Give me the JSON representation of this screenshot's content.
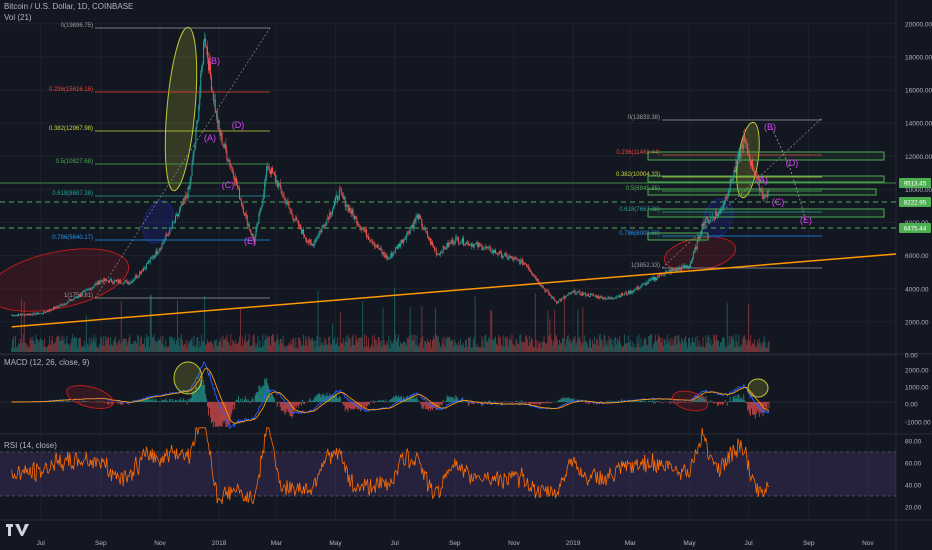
{
  "header": {
    "title": "Bitcoin / U.S. Dollar, 1D, COINBASE",
    "volume_label": "Vol (21)"
  },
  "macd_panel": {
    "label": "MACD (12, 26, close, 9)"
  },
  "rsi_panel": {
    "label": "RSI (14, close)"
  },
  "colors": {
    "background": "#131722",
    "candle_up": "#26a69a",
    "candle_down": "#ef5350",
    "trendline": "#ff9800",
    "fib_green": "#4caf50",
    "wave_label": "#e040fb",
    "rsi_line": "#ff6d00",
    "rsi_band": "#7e57c2",
    "macd_line": "#2962ff",
    "signal_line": "#ff9800"
  },
  "x_axis": {
    "labels": [
      "Jul",
      "Sep",
      "Nov",
      "2018",
      "Mar",
      "May",
      "Jul",
      "Sep",
      "Nov",
      "2019",
      "Mar",
      "May",
      "Jul",
      "Sep",
      "Nov"
    ]
  },
  "price_axis": {
    "ticks": [
      "20000.00",
      "18000.00",
      "16000.00",
      "14000.00",
      "12000.00",
      "10000.00",
      "8000.00",
      "6000.00",
      "4000.00",
      "2000.00",
      "0.00"
    ],
    "price_tags": [
      "9513.45",
      "8222.95",
      "6475.44"
    ]
  },
  "macd_axis": {
    "ticks": [
      "2000.00",
      "1000.00",
      "0.00",
      "-1000.00"
    ]
  },
  "rsi_axis": {
    "ticks": [
      "80.00",
      "60.00",
      "40.00",
      "20.00"
    ]
  },
  "fib_left": {
    "labels": [
      "0(19896.75)",
      "0.236(15616.15)",
      "0.382(12967.98)",
      "0.5(10827.68)",
      "0.618(8687.38)",
      "0.786(5640.17)",
      "1(1758.81)"
    ]
  },
  "fib_right": {
    "labels": [
      "0(13839.38)",
      "0.236(11468.44)",
      "0.382(10004.33)",
      "0.5(8845.85)",
      "0.618(7667.38)",
      "0.786(6008.58)",
      "1(3852.33)"
    ]
  },
  "wave_labels": {
    "left": [
      "(B)",
      "(A)",
      "(D)",
      "(C)",
      "(E)"
    ],
    "right": [
      "(B)",
      "(A)",
      "(D)",
      "(C)",
      "(E)"
    ]
  },
  "chart_data": {
    "type": "line",
    "symbol": "Bitcoin / U.S. Dollar, 1D, COINBASE",
    "x": [
      "2017-06-01",
      "2017-07-01",
      "2017-08-01",
      "2017-09-01",
      "2017-10-01",
      "2017-11-01",
      "2017-12-01",
      "2017-12-17",
      "2018-01-01",
      "2018-01-16",
      "2018-02-06",
      "2018-02-20",
      "2018-03-01",
      "2018-04-06",
      "2018-05-05",
      "2018-06-24",
      "2018-07-25",
      "2018-08-14",
      "2018-09-01",
      "2018-10-01",
      "2018-11-14",
      "2018-12-15",
      "2019-01-01",
      "2019-02-07",
      "2019-03-01",
      "2019-04-02",
      "2019-05-01",
      "2019-05-15",
      "2019-06-01",
      "2019-06-26",
      "2019-07-17",
      "2019-07-22"
    ],
    "series": [
      {
        "values": [
          2400,
          2500,
          3300,
          4500,
          4400,
          6500,
          10000,
          19500,
          13500,
          11000,
          6900,
          11500,
          10500,
          6600,
          9800,
          5800,
          8400,
          6100,
          7000,
          6500,
          5500,
          3200,
          3800,
          3400,
          3800,
          4900,
          5400,
          8000,
          8600,
          13000,
          9500,
          9900
        ]
      }
    ],
    "ylim": [
      0,
      20500
    ],
    "trendline": {
      "from": [
        "2017-06-01",
        1700
      ],
      "to": [
        "2019-11-30",
        6100
      ]
    }
  }
}
